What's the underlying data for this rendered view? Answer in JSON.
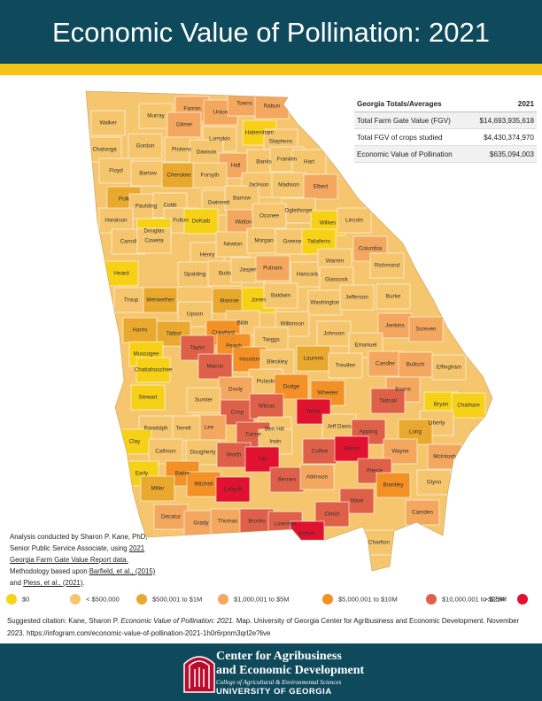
{
  "header": {
    "title": "Economic Value of Pollination: 2021"
  },
  "table": {
    "headers": [
      "Georgia Totals/Averages",
      "2021"
    ],
    "rows": [
      [
        "Total Farm Gate Value (FGV)",
        "$14,693,935,618"
      ],
      [
        "Total FGV of crops studied",
        "$4,430,374,970"
      ],
      [
        "Economic Value of Pollination",
        "$635,094,003"
      ]
    ]
  },
  "legend": [
    {
      "label": "$0",
      "color": "#f7d117"
    },
    {
      "label": "< $500,000",
      "color": "#f6c66e"
    },
    {
      "label": "$500,001 to $1M",
      "color": "#e9a82e"
    },
    {
      "label": "$1,000,001 to $5M",
      "color": "#f4a75e"
    },
    {
      "label": "$5,000,001 to $10M",
      "color": "#f39126"
    },
    {
      "label": "$10,000,001 to $25M",
      "color": "#de6049"
    },
    {
      "label": "> $25M",
      "color": "#e1122f"
    }
  ],
  "counties": [
    {
      "name": "Walker",
      "color": "#f6c66e"
    },
    {
      "name": "Murray",
      "color": "#f6c66e"
    },
    {
      "name": "Fannin",
      "color": "#f4a75e"
    },
    {
      "name": "Union",
      "color": "#f4a75e"
    },
    {
      "name": "Towns",
      "color": "#f4a75e"
    },
    {
      "name": "Rabun",
      "color": "#f4a75e"
    },
    {
      "name": "Gilmer",
      "color": "#f4a75e"
    },
    {
      "name": "Habersham",
      "color": "#f7d117"
    },
    {
      "name": "Chatooga",
      "color": "#f6c66e"
    },
    {
      "name": "Gordon",
      "color": "#f6c66e"
    },
    {
      "name": "Lumpkin",
      "color": "#f6c66e"
    },
    {
      "name": "Stephens",
      "color": "#f6c66e"
    },
    {
      "name": "Pickens",
      "color": "#f6c66e"
    },
    {
      "name": "Dawson",
      "color": "#f6c66e"
    },
    {
      "name": "Floyd",
      "color": "#f6c66e"
    },
    {
      "name": "Bartow",
      "color": "#f6c66e"
    },
    {
      "name": "Hall",
      "color": "#f4a75e"
    },
    {
      "name": "Banks",
      "color": "#f6c66e"
    },
    {
      "name": "Franklin",
      "color": "#f6c66e"
    },
    {
      "name": "Hart",
      "color": "#f6c66e"
    },
    {
      "name": "Cherokee",
      "color": "#e9a82e"
    },
    {
      "name": "Forsyth",
      "color": "#f6c66e"
    },
    {
      "name": "Jackson",
      "color": "#f6c66e"
    },
    {
      "name": "Madison",
      "color": "#f6c66e"
    },
    {
      "name": "Elbert",
      "color": "#f4a75e"
    },
    {
      "name": "Polk",
      "color": "#e9a82e"
    },
    {
      "name": "Paulding",
      "color": "#f6c66e"
    },
    {
      "name": "Cobb",
      "color": "#f6c66e"
    },
    {
      "name": "Gwinnett",
      "color": "#f6c66e"
    },
    {
      "name": "Barrow",
      "color": "#f6c66e"
    },
    {
      "name": "Oglethorpe",
      "color": "#f6c66e"
    },
    {
      "name": "Haralson",
      "color": "#f6c66e"
    },
    {
      "name": "Fulton",
      "color": "#f6c66e"
    },
    {
      "name": "DeKalb",
      "color": "#f7d117"
    },
    {
      "name": "Walton",
      "color": "#f4a75e"
    },
    {
      "name": "Oconee",
      "color": "#f6c66e"
    },
    {
      "name": "Wilkes",
      "color": "#f7d117"
    },
    {
      "name": "Lincoln",
      "color": "#f6c66e"
    },
    {
      "name": "Douglas",
      "color": "#f7d117"
    },
    {
      "name": "Carroll",
      "color": "#f6c66e"
    },
    {
      "name": "Henry",
      "color": "#f6c66e"
    },
    {
      "name": "Newton",
      "color": "#f6c66e"
    },
    {
      "name": "Morgan",
      "color": "#f6c66e"
    },
    {
      "name": "Greene",
      "color": "#f6c66e"
    },
    {
      "name": "Taliaferro",
      "color": "#f7d117"
    },
    {
      "name": "Columbia",
      "color": "#f4a75e"
    },
    {
      "name": "Heard",
      "color": "#f7d117"
    },
    {
      "name": "Coweta",
      "color": "#f6c66e"
    },
    {
      "name": "Spalding",
      "color": "#f6c66e"
    },
    {
      "name": "Butts",
      "color": "#f6c66e"
    },
    {
      "name": "Jasper",
      "color": "#f6c66e"
    },
    {
      "name": "Putnam",
      "color": "#f4a75e"
    },
    {
      "name": "Hancock",
      "color": "#f6c66e"
    },
    {
      "name": "Warren",
      "color": "#f6c66e"
    },
    {
      "name": "Glascock",
      "color": "#f6c66e"
    },
    {
      "name": "Richmond",
      "color": "#f6c66e"
    },
    {
      "name": "Troup",
      "color": "#f6c66e"
    },
    {
      "name": "Meriwether",
      "color": "#e9a82e"
    },
    {
      "name": "Monroe",
      "color": "#e9a82e"
    },
    {
      "name": "Jones",
      "color": "#f7d117"
    },
    {
      "name": "Baldwin",
      "color": "#f6c66e"
    },
    {
      "name": "Washington",
      "color": "#f6c66e"
    },
    {
      "name": "Jefferson",
      "color": "#f6c66e"
    },
    {
      "name": "Burke",
      "color": "#f6c66e"
    },
    {
      "name": "Upson",
      "color": "#f6c66e"
    },
    {
      "name": "Bibb",
      "color": "#f6c66e"
    },
    {
      "name": "Wilkinson",
      "color": "#f6c66e"
    },
    {
      "name": "Harris",
      "color": "#e9a82e"
    },
    {
      "name": "Talbot",
      "color": "#e9a82e"
    },
    {
      "name": "Crawford",
      "color": "#f39126"
    },
    {
      "name": "Twiggs",
      "color": "#f6c66e"
    },
    {
      "name": "Johnson",
      "color": "#f6c66e"
    },
    {
      "name": "Jenkins",
      "color": "#f4a75e"
    },
    {
      "name": "Screven",
      "color": "#f4a75e"
    },
    {
      "name": "Emanuel",
      "color": "#f6c66e"
    },
    {
      "name": "Taylor",
      "color": "#de6049"
    },
    {
      "name": "Peach",
      "color": "#f39126"
    },
    {
      "name": "Houston",
      "color": "#f39126"
    },
    {
      "name": "Muscogee",
      "color": "#f7d117"
    },
    {
      "name": "Macon",
      "color": "#de6049"
    },
    {
      "name": "Bleckley",
      "color": "#f6c66e"
    },
    {
      "name": "Laurens",
      "color": "#e9a82e"
    },
    {
      "name": "Treutlen",
      "color": "#f6c66e"
    },
    {
      "name": "Candler",
      "color": "#f4a75e"
    },
    {
      "name": "Bulloch",
      "color": "#f4a75e"
    },
    {
      "name": "Effingham",
      "color": "#f6c66e"
    },
    {
      "name": "Chattahoochee",
      "color": "#f7d117"
    },
    {
      "name": "Pulaski",
      "color": "#f6c66e"
    },
    {
      "name": "Dodge",
      "color": "#f39126"
    },
    {
      "name": "Wheeler",
      "color": "#f39126"
    },
    {
      "name": "Evans",
      "color": "#f4a75e"
    },
    {
      "name": "Tattnall",
      "color": "#de6049"
    },
    {
      "name": "Dooly",
      "color": "#f4a75e"
    },
    {
      "name": "Sumter",
      "color": "#f6c66e"
    },
    {
      "name": "Stewart",
      "color": "#f7d117"
    },
    {
      "name": "Bryan",
      "color": "#f7d117"
    },
    {
      "name": "Chatham",
      "color": "#f7d117"
    },
    {
      "name": "Crisp",
      "color": "#de6049"
    },
    {
      "name": "Wilcox",
      "color": "#de6049"
    },
    {
      "name": "Telfair",
      "color": "#e1122f"
    },
    {
      "name": "Jeff Davis",
      "color": "#f6c66e"
    },
    {
      "name": "Lee",
      "color": "#f4a75e"
    },
    {
      "name": "Terrell",
      "color": "#f6c66e"
    },
    {
      "name": "Randolph",
      "color": "#f6c66e"
    },
    {
      "name": "Ben Hill",
      "color": "#f6c66e"
    },
    {
      "name": "Liberty",
      "color": "#f6c66e"
    },
    {
      "name": "Appling",
      "color": "#de6049"
    },
    {
      "name": "Long",
      "color": "#e9a82e"
    },
    {
      "name": "Turner",
      "color": "#de6049"
    },
    {
      "name": "Irwin",
      "color": "#f6c66e"
    },
    {
      "name": "Clay",
      "color": "#f7d117"
    },
    {
      "name": "Coffee",
      "color": "#de6049"
    },
    {
      "name": "Bacon",
      "color": "#e1122f"
    },
    {
      "name": "Wayne",
      "color": "#f4a75e"
    },
    {
      "name": "McIntosh",
      "color": "#f4a75e"
    },
    {
      "name": "Calhoun",
      "color": "#f6c66e"
    },
    {
      "name": "Dougherty",
      "color": "#f6c66e"
    },
    {
      "name": "Worth",
      "color": "#de6049"
    },
    {
      "name": "Tift",
      "color": "#e1122f"
    },
    {
      "name": "Early",
      "color": "#f7d117"
    },
    {
      "name": "Baker",
      "color": "#f39126"
    },
    {
      "name": "Berrien",
      "color": "#de6049"
    },
    {
      "name": "Atkinson",
      "color": "#f4a75e"
    },
    {
      "name": "Pierce",
      "color": "#de6049"
    },
    {
      "name": "Glynn",
      "color": "#f6c66e"
    },
    {
      "name": "Brantley",
      "color": "#f39126"
    },
    {
      "name": "Miller",
      "color": "#e9a82e"
    },
    {
      "name": "Mitchell",
      "color": "#f39126"
    },
    {
      "name": "Colquitt",
      "color": "#e1122f"
    },
    {
      "name": "Ware",
      "color": "#de6049"
    },
    {
      "name": "Camden",
      "color": "#f4a75e"
    },
    {
      "name": "Decatur",
      "color": "#f4a75e"
    },
    {
      "name": "Grady",
      "color": "#f4a75e"
    },
    {
      "name": "Thomas",
      "color": "#f4a75e"
    },
    {
      "name": "Brooks",
      "color": "#de6049"
    },
    {
      "name": "Lowndes",
      "color": "#de6049"
    },
    {
      "name": "Clinch",
      "color": "#de6049"
    },
    {
      "name": "Echols",
      "color": "#e1122f"
    },
    {
      "name": "Charlton",
      "color": "#f6c66e"
    }
  ],
  "note": {
    "p1": "Analysis conducted by Sharon P. Kane, PhD, Senior Public Service Associate, using ",
    "link1": "2021 Georgia Farm Gate Value Report data.",
    "p2": " Methodology based upon ",
    "link2": "Barfield, et al., (2015)",
    "p3": " and ",
    "link3": "Pless, et al., (2021)",
    "p4": "."
  },
  "citation": {
    "p1": "Suggested citation: Kane, Sharon P. ",
    "italic": "Economic Value of Pollination: 2021.",
    "p2": " Map. University of Georgia Center for Agribusiness and Economic Development. November 2023. https://infogram.com/economic-value-of-pollination-2021-1h0r6rpnm3qrl2e?live"
  },
  "footer": {
    "line1": "Center for Agribusiness",
    "line2": "and Economic Development",
    "line3": "College of Agricultural & Environmental Sciences",
    "line4": "UNIVERSITY OF GEORGIA"
  }
}
